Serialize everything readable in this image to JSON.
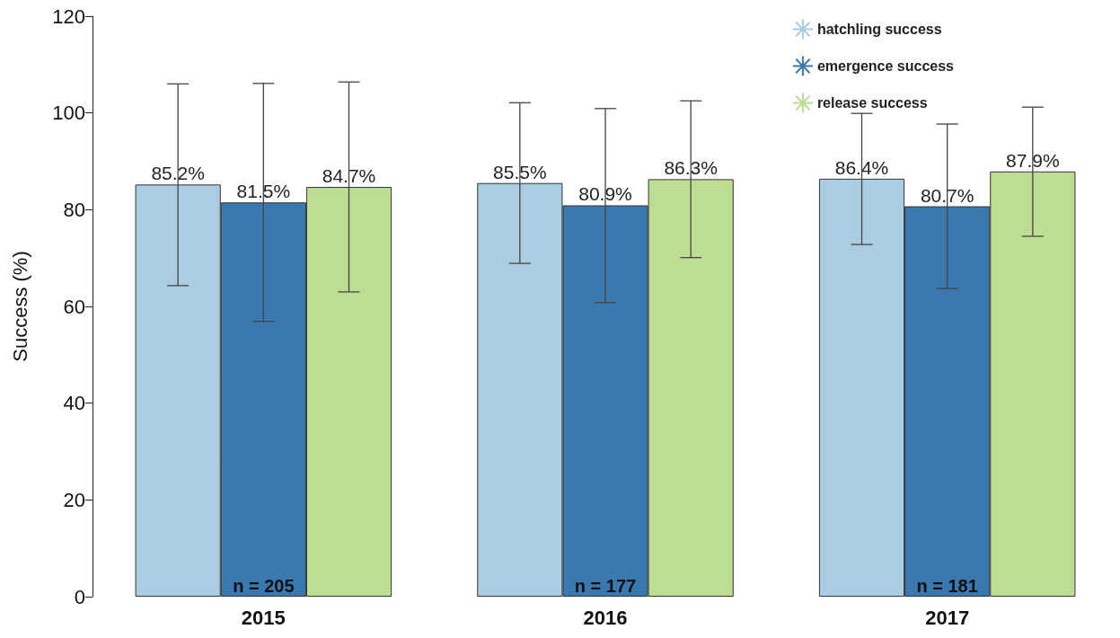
{
  "chart_data": {
    "type": "bar",
    "ylabel": "Success (%)",
    "categories": [
      "2015",
      "2016",
      "2017"
    ],
    "series": [
      {
        "name": "hatchling success",
        "color": "#abcde1",
        "values": [
          85.2,
          85.5,
          86.4
        ],
        "value_labels": [
          "85.2%",
          "85.5%",
          "86.4%"
        ],
        "errors": [
          [
            64.3,
            106.0
          ],
          [
            68.9,
            102.1
          ],
          [
            72.8,
            99.9
          ]
        ]
      },
      {
        "name": "emergence success",
        "color": "#3a78b0",
        "values": [
          81.5,
          80.9,
          80.7
        ],
        "value_labels": [
          "81.5%",
          "80.9%",
          "80.7%"
        ],
        "errors": [
          [
            56.9,
            106.1
          ],
          [
            60.8,
            100.9
          ],
          [
            63.7,
            97.7
          ]
        ]
      },
      {
        "name": "release success",
        "color": "#bcdd92",
        "values": [
          84.7,
          86.3,
          87.9
        ],
        "value_labels": [
          "84.7%",
          "86.3%",
          "87.9%"
        ],
        "errors": [
          [
            63.0,
            106.4
          ],
          [
            70.1,
            102.5
          ],
          [
            74.5,
            101.2
          ]
        ]
      }
    ],
    "ylim": [
      0,
      120
    ],
    "yticks": [
      0,
      20,
      40,
      60,
      80,
      100,
      120
    ],
    "grid": false,
    "legend": "top right",
    "annotations": [
      "n = 205",
      "n = 177",
      "n = 181"
    ]
  }
}
